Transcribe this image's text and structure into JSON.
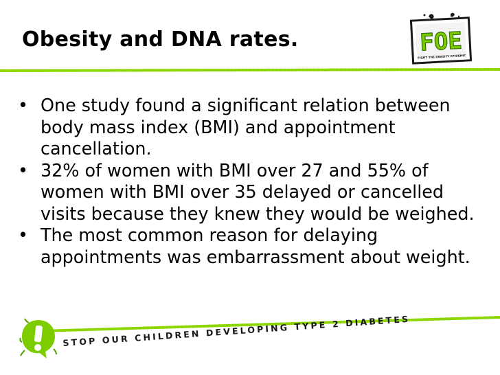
{
  "slide": {
    "title": "Obesity and DNA rates.",
    "bullets": [
      "One study found a significant relation between body mass index (BMI) and appointment cancellation.",
      "32% of women with BMI over 27 and 55% of women with BMI over 35 delayed or cancelled visits because they knew they would be weighed.",
      "The most common reason for delaying appointments was embarrassment about weight."
    ],
    "bullet_glyph": "•"
  },
  "logo": {
    "text": "FOE",
    "tagline": "FIGHT THE OBESITY EPIDEMIC",
    "icon": "foe-logo-icon"
  },
  "footer": {
    "tagline": "STOP OUR CHILDREN DEVELOPING TYPE 2 DIABETES",
    "mark_text": "!",
    "icon": "exclamation-splat-icon"
  },
  "colors": {
    "accent_green": "#8cd600",
    "dark_green": "#5aa000",
    "text": "#000000"
  }
}
